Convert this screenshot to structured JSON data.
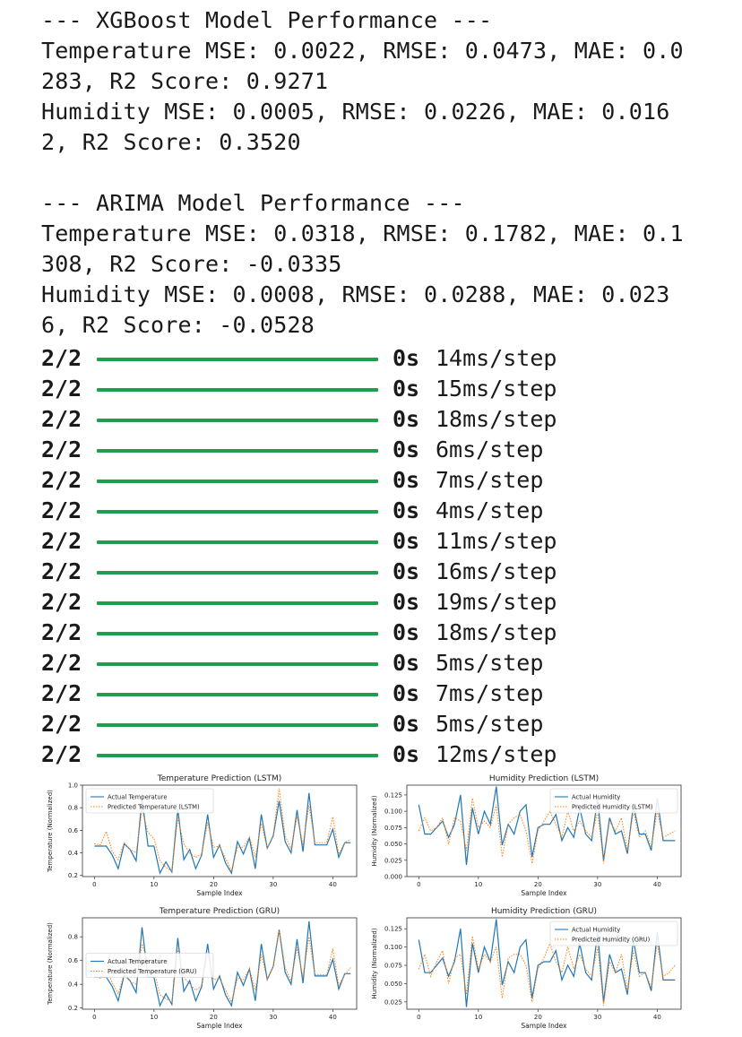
{
  "console": {
    "xgb_header": "--- XGBoost Model Performance ---",
    "xgb_temp_1": "Temperature MSE: 0.0022, RMSE: 0.0473, MAE: 0.0",
    "xgb_temp_2": "283, R2 Score: 0.9271",
    "xgb_hum_1": "Humidity MSE: 0.0005, RMSE: 0.0226, MAE: 0.016",
    "xgb_hum_2": "2, R2 Score: 0.3520",
    "arima_header": "--- ARIMA Model Performance ---",
    "arima_temp_1": "Temperature MSE: 0.0318, RMSE: 0.1782, MAE: 0.1",
    "arima_temp_2": "308, R2 Score: -0.0335",
    "arima_hum_1": "Humidity MSE: 0.0008, RMSE: 0.0288, MAE: 0.023",
    "arima_hum_2": "6, R2 Score: -0.0528"
  },
  "progress": {
    "bar_color": "#1e9e4e",
    "rows": [
      {
        "count": "2/2",
        "time": "0s",
        "step": "14ms/step",
        "fraction": 1.0
      },
      {
        "count": "2/2",
        "time": "0s",
        "step": "15ms/step",
        "fraction": 1.0
      },
      {
        "count": "2/2",
        "time": "0s",
        "step": "18ms/step",
        "fraction": 1.0
      },
      {
        "count": "2/2",
        "time": "0s",
        "step": "6ms/step",
        "fraction": 1.0
      },
      {
        "count": "2/2",
        "time": "0s",
        "step": "7ms/step",
        "fraction": 1.0
      },
      {
        "count": "2/2",
        "time": "0s",
        "step": "4ms/step",
        "fraction": 1.0
      },
      {
        "count": "2/2",
        "time": "0s",
        "step": "11ms/step",
        "fraction": 1.0
      },
      {
        "count": "2/2",
        "time": "0s",
        "step": "16ms/step",
        "fraction": 1.0
      },
      {
        "count": "2/2",
        "time": "0s",
        "step": "19ms/step",
        "fraction": 1.0
      },
      {
        "count": "2/2",
        "time": "0s",
        "step": "18ms/step",
        "fraction": 1.0
      },
      {
        "count": "2/2",
        "time": "0s",
        "step": "5ms/step",
        "fraction": 1.0
      },
      {
        "count": "2/2",
        "time": "0s",
        "step": "7ms/step",
        "fraction": 1.0
      },
      {
        "count": "2/2",
        "time": "0s",
        "step": "5ms/step",
        "fraction": 1.0
      },
      {
        "count": "2/2",
        "time": "0s",
        "step": "12ms/step",
        "fraction": 1.0
      }
    ]
  },
  "chart_data": [
    {
      "type": "line",
      "title": "Temperature Prediction (LSTM)",
      "xlabel": "Sample Index",
      "ylabel": "Temperature (Normalized)",
      "xlim": [
        -2,
        44
      ],
      "ylim": [
        0.19,
        1.0
      ],
      "xticks": [
        0,
        10,
        20,
        30,
        40
      ],
      "yticks": [
        0.2,
        0.4,
        0.6,
        0.8,
        1.0
      ],
      "ytick_labels": [
        "0.2",
        "0.4",
        "0.6",
        "0.8",
        "1.0"
      ],
      "legend_position": "top-left",
      "grid": false,
      "series": [
        {
          "name": "Actual Temperature",
          "color": "#1f77b4",
          "style": "solid",
          "values": [
            0.46,
            0.46,
            0.46,
            0.38,
            0.26,
            0.48,
            0.43,
            0.33,
            0.88,
            0.46,
            0.46,
            0.22,
            0.32,
            0.23,
            0.79,
            0.34,
            0.43,
            0.26,
            0.38,
            0.74,
            0.36,
            0.47,
            0.31,
            0.22,
            0.5,
            0.39,
            0.53,
            0.26,
            0.74,
            0.44,
            0.55,
            0.86,
            0.5,
            0.4,
            0.78,
            0.41,
            0.93,
            0.47,
            0.47,
            0.47,
            0.61,
            0.36,
            0.49,
            0.49
          ]
        },
        {
          "name": "Predicted Temperature (LSTM)",
          "color": "#ff7f0e",
          "style": "dotted",
          "values": [
            0.48,
            0.47,
            0.59,
            0.41,
            0.34,
            0.49,
            0.43,
            0.4,
            0.78,
            0.58,
            0.53,
            0.33,
            0.27,
            0.24,
            0.71,
            0.48,
            0.4,
            0.36,
            0.39,
            0.67,
            0.45,
            0.46,
            0.35,
            0.24,
            0.45,
            0.45,
            0.54,
            0.36,
            0.66,
            0.44,
            0.56,
            0.97,
            0.55,
            0.44,
            0.72,
            0.47,
            0.82,
            0.49,
            0.49,
            0.49,
            0.72,
            0.39,
            0.49,
            0.52
          ]
        }
      ]
    },
    {
      "type": "line",
      "title": "Humidity Prediction (LSTM)",
      "xlabel": "Sample Index",
      "ylabel": "Humidity (Normalized)",
      "xlim": [
        -2,
        44
      ],
      "ylim": [
        0.0,
        0.14
      ],
      "xticks": [
        0,
        10,
        20,
        30,
        40
      ],
      "yticks": [
        0.0,
        0.025,
        0.05,
        0.075,
        0.1,
        0.125
      ],
      "ytick_labels": [
        "0.000",
        "0.025",
        "0.050",
        "0.075",
        "0.100",
        "0.125"
      ],
      "legend_position": "top-right",
      "grid": false,
      "series": [
        {
          "name": "Actual Humidity",
          "color": "#1f77b4",
          "style": "solid",
          "values": [
            0.11,
            0.065,
            0.065,
            0.075,
            0.085,
            0.06,
            0.08,
            0.125,
            0.018,
            0.105,
            0.065,
            0.1,
            0.08,
            0.138,
            0.048,
            0.08,
            0.065,
            0.1,
            0.11,
            0.03,
            0.075,
            0.08,
            0.08,
            0.095,
            0.055,
            0.075,
            0.06,
            0.105,
            0.065,
            0.055,
            0.12,
            0.025,
            0.09,
            0.065,
            0.07,
            0.035,
            0.11,
            0.065,
            0.065,
            0.04,
            0.12,
            0.055,
            0.055,
            0.055
          ]
        },
        {
          "name": "Predicted Humidity (LSTM)",
          "color": "#ff7f0e",
          "style": "dotted",
          "values": [
            0.07,
            0.09,
            0.07,
            0.075,
            0.09,
            0.05,
            0.09,
            0.085,
            0.04,
            0.12,
            0.075,
            0.085,
            0.075,
            0.11,
            0.03,
            0.08,
            0.09,
            0.095,
            0.07,
            0.02,
            0.07,
            0.085,
            0.1,
            0.08,
            0.06,
            0.1,
            0.07,
            0.085,
            0.07,
            0.06,
            0.1,
            0.02,
            0.085,
            0.07,
            0.09,
            0.04,
            0.1,
            0.06,
            0.07,
            0.045,
            0.1,
            0.06,
            0.065,
            0.07
          ]
        }
      ]
    },
    {
      "type": "line",
      "title": "Temperature Prediction (GRU)",
      "xlabel": "Sample Index",
      "ylabel": "Temperature (Normalized)",
      "xlim": [
        -2,
        44
      ],
      "ylim": [
        0.19,
        0.96
      ],
      "xticks": [
        0,
        10,
        20,
        30,
        40
      ],
      "yticks": [
        0.2,
        0.4,
        0.6,
        0.8
      ],
      "ytick_labels": [
        "0.2",
        "0.4",
        "0.6",
        "0.8"
      ],
      "legend_position": "center-left",
      "grid": false,
      "series": [
        {
          "name": "Actual Temperature",
          "color": "#1f77b4",
          "style": "solid",
          "values": [
            0.46,
            0.46,
            0.46,
            0.38,
            0.26,
            0.48,
            0.43,
            0.33,
            0.88,
            0.46,
            0.46,
            0.22,
            0.32,
            0.23,
            0.79,
            0.34,
            0.43,
            0.26,
            0.38,
            0.74,
            0.36,
            0.47,
            0.31,
            0.22,
            0.5,
            0.39,
            0.53,
            0.26,
            0.74,
            0.44,
            0.55,
            0.86,
            0.5,
            0.4,
            0.78,
            0.41,
            0.93,
            0.47,
            0.47,
            0.47,
            0.61,
            0.36,
            0.49,
            0.49
          ]
        },
        {
          "name": "Predicted Temperature (GRU)",
          "color": "#ff7f0e",
          "style": "dotted",
          "values": [
            0.47,
            0.45,
            0.55,
            0.41,
            0.32,
            0.49,
            0.42,
            0.4,
            0.74,
            0.58,
            0.51,
            0.31,
            0.28,
            0.25,
            0.69,
            0.46,
            0.4,
            0.35,
            0.39,
            0.66,
            0.44,
            0.45,
            0.35,
            0.25,
            0.45,
            0.44,
            0.53,
            0.35,
            0.65,
            0.44,
            0.55,
            0.86,
            0.54,
            0.43,
            0.71,
            0.46,
            0.8,
            0.48,
            0.48,
            0.48,
            0.7,
            0.39,
            0.48,
            0.54
          ]
        }
      ]
    },
    {
      "type": "line",
      "title": "Humidity Prediction (GRU)",
      "xlabel": "Sample Index",
      "ylabel": "Humidity (Normalized)",
      "xlim": [
        -2,
        44
      ],
      "ylim": [
        0.015,
        0.14
      ],
      "xticks": [
        0,
        10,
        20,
        30,
        40
      ],
      "yticks": [
        0.025,
        0.05,
        0.075,
        0.1,
        0.125
      ],
      "ytick_labels": [
        "0.025",
        "0.050",
        "0.075",
        "0.100",
        "0.125"
      ],
      "legend_position": "top-right",
      "grid": false,
      "series": [
        {
          "name": "Actual Humidity",
          "color": "#1f77b4",
          "style": "solid",
          "values": [
            0.11,
            0.065,
            0.065,
            0.075,
            0.085,
            0.06,
            0.08,
            0.125,
            0.018,
            0.105,
            0.065,
            0.1,
            0.08,
            0.138,
            0.048,
            0.08,
            0.065,
            0.1,
            0.11,
            0.03,
            0.075,
            0.08,
            0.08,
            0.095,
            0.055,
            0.075,
            0.06,
            0.105,
            0.065,
            0.055,
            0.12,
            0.025,
            0.09,
            0.065,
            0.07,
            0.035,
            0.11,
            0.065,
            0.065,
            0.04,
            0.12,
            0.055,
            0.055,
            0.055
          ]
        },
        {
          "name": "Predicted Humidity (GRU)",
          "color": "#ff7f0e",
          "style": "dotted",
          "values": [
            0.07,
            0.09,
            0.06,
            0.08,
            0.095,
            0.05,
            0.085,
            0.09,
            0.035,
            0.115,
            0.07,
            0.09,
            0.08,
            0.1,
            0.03,
            0.085,
            0.09,
            0.09,
            0.075,
            0.025,
            0.07,
            0.085,
            0.105,
            0.08,
            0.065,
            0.1,
            0.07,
            0.09,
            0.07,
            0.06,
            0.1,
            0.02,
            0.08,
            0.065,
            0.09,
            0.04,
            0.095,
            0.06,
            0.065,
            0.045,
            0.105,
            0.06,
            0.065,
            0.075
          ]
        }
      ]
    }
  ]
}
